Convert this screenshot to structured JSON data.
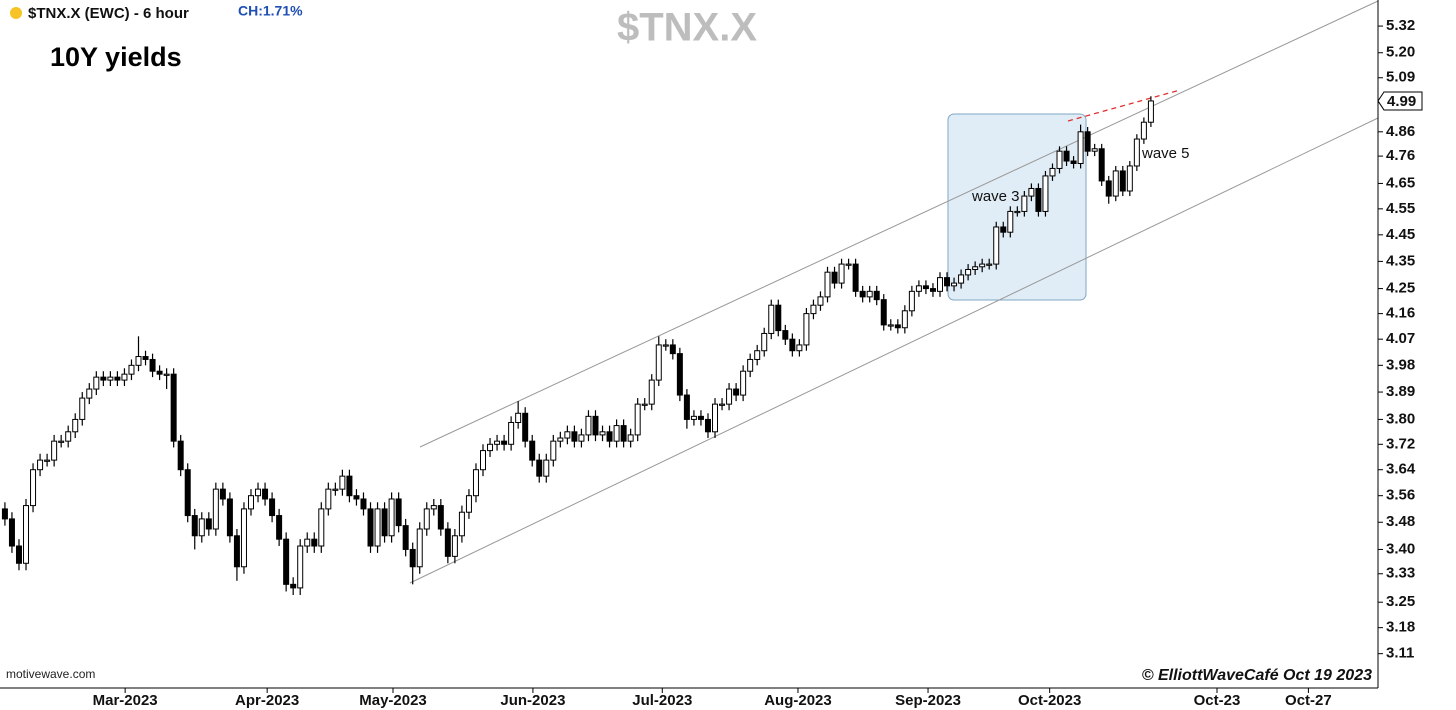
{
  "chart_data": {
    "type": "candlestick",
    "title": "$TNX.X (EWC) - 6 hour",
    "change_label": "CH:1.71%",
    "watermark": "$TNX.X",
    "subtitle": "10Y yields",
    "source": "motivewave.com",
    "copyright": "© ElliottWaveCafé Oct 19 2023",
    "annotations": [
      {
        "text": "wave 3"
      },
      {
        "text": "wave 5"
      }
    ],
    "last_price": 4.99,
    "up_color": "#ffffff",
    "down_color": "#000000",
    "log_scale": true,
    "ylim": [
      3.02,
      5.44
    ],
    "yticks": [
      3.11,
      3.18,
      3.25,
      3.33,
      {
        "value": 3.4,
        "label": "3.40"
      },
      3.48,
      3.56,
      3.64,
      3.72,
      {
        "value": 3.8,
        "label": "3.80"
      },
      3.89,
      3.98,
      4.07,
      4.16,
      4.25,
      4.35,
      4.45,
      4.55,
      4.65,
      4.76,
      4.86,
      5.09,
      {
        "value": 5.2,
        "label": "5.20"
      },
      5.32
    ],
    "xlim": [
      -0.7,
      195.3
    ],
    "xticks": [
      {
        "value": 17.1,
        "label": "Mar-2023"
      },
      {
        "value": 37.3,
        "label": "Apr-2023"
      },
      {
        "value": 55.2,
        "label": "May-2023"
      },
      {
        "value": 75.1,
        "label": "Jun-2023"
      },
      {
        "value": 93.5,
        "label": "Jul-2023"
      },
      {
        "value": 112.8,
        "label": "Aug-2023"
      },
      {
        "value": 131.3,
        "label": "Sep-2023"
      },
      {
        "value": 148.6,
        "label": "Oct-2023"
      },
      {
        "value": 172.4,
        "label": "Oct-23"
      },
      {
        "value": 185.4,
        "label": "Oct-27"
      }
    ],
    "open": [
      3.52,
      3.49,
      3.41,
      3.36,
      3.53,
      3.64,
      3.67,
      3.67,
      3.73,
      3.73,
      3.76,
      3.8,
      3.87,
      3.9,
      3.94,
      3.93,
      3.94,
      3.93,
      3.95,
      3.98,
      4.01,
      4.0,
      3.96,
      3.95,
      3.95,
      3.73,
      3.64,
      3.5,
      3.44,
      3.49,
      3.46,
      3.58,
      3.55,
      3.44,
      3.35,
      3.52,
      3.56,
      3.58,
      3.55,
      3.5,
      3.43,
      3.3,
      3.29,
      3.41,
      3.43,
      3.41,
      3.52,
      3.58,
      3.58,
      3.62,
      3.56,
      3.55,
      3.52,
      3.41,
      3.52,
      3.44,
      3.55,
      3.47,
      3.4,
      3.35,
      3.46,
      3.52,
      3.53,
      3.46,
      3.38,
      3.44,
      3.51,
      3.56,
      3.64,
      3.7,
      3.72,
      3.73,
      3.72,
      3.79,
      3.82,
      3.73,
      3.67,
      3.62,
      3.67,
      3.73,
      3.74,
      3.76,
      3.73,
      3.75,
      3.81,
      3.75,
      3.76,
      3.73,
      3.78,
      3.73,
      3.75,
      3.85,
      3.85,
      3.93,
      4.05,
      4.05,
      4.02,
      3.88,
      3.8,
      3.81,
      3.8,
      3.76,
      3.85,
      3.85,
      3.9,
      3.88,
      3.96,
      4.0,
      4.03,
      4.09,
      4.19,
      4.1,
      4.07,
      4.03,
      4.05,
      4.16,
      4.19,
      4.22,
      4.31,
      4.27,
      4.34,
      4.34,
      4.24,
      4.22,
      4.24,
      4.21,
      4.12,
      4.12,
      4.11,
      4.17,
      4.24,
      4.26,
      4.25,
      4.24,
      4.29,
      4.26,
      4.27,
      4.3,
      4.32,
      4.33,
      4.34,
      4.34,
      4.48,
      4.46,
      4.54,
      4.54,
      4.6,
      4.63,
      4.54,
      4.68,
      4.71,
      4.78,
      4.74,
      4.73,
      4.86,
      4.78,
      4.79,
      4.66,
      4.6,
      4.7,
      4.62,
      4.72,
      4.83,
      4.9
    ],
    "high": [
      3.54,
      3.51,
      3.43,
      3.55,
      3.66,
      3.69,
      3.69,
      3.75,
      3.75,
      3.78,
      3.82,
      3.89,
      3.92,
      3.96,
      3.96,
      3.96,
      3.96,
      3.97,
      4.0,
      4.08,
      4.03,
      4.02,
      3.98,
      3.97,
      3.97,
      3.75,
      3.66,
      3.52,
      3.51,
      3.51,
      3.6,
      3.6,
      3.57,
      3.46,
      3.54,
      3.58,
      3.6,
      3.6,
      3.57,
      3.52,
      3.45,
      3.32,
      3.43,
      3.45,
      3.45,
      3.54,
      3.6,
      3.6,
      3.64,
      3.64,
      3.58,
      3.57,
      3.54,
      3.54,
      3.54,
      3.57,
      3.57,
      3.49,
      3.42,
      3.48,
      3.54,
      3.55,
      3.55,
      3.48,
      3.46,
      3.53,
      3.58,
      3.66,
      3.72,
      3.74,
      3.75,
      3.75,
      3.81,
      3.86,
      3.84,
      3.75,
      3.69,
      3.69,
      3.75,
      3.76,
      3.78,
      3.78,
      3.77,
      3.83,
      3.83,
      3.78,
      3.78,
      3.8,
      3.8,
      3.77,
      3.87,
      3.87,
      3.95,
      4.08,
      4.07,
      4.07,
      4.04,
      3.9,
      3.83,
      3.83,
      3.82,
      3.87,
      3.87,
      3.92,
      3.92,
      3.98,
      4.02,
      4.05,
      4.11,
      4.21,
      4.21,
      4.12,
      4.09,
      4.07,
      4.18,
      4.21,
      4.24,
      4.33,
      4.33,
      4.36,
      4.36,
      4.36,
      4.26,
      4.26,
      4.26,
      4.23,
      4.14,
      4.14,
      4.19,
      4.26,
      4.28,
      4.28,
      4.27,
      4.31,
      4.31,
      4.29,
      4.32,
      4.34,
      4.35,
      4.36,
      4.36,
      4.5,
      4.5,
      4.56,
      4.56,
      4.62,
      4.65,
      4.65,
      4.7,
      4.73,
      4.8,
      4.8,
      4.76,
      4.89,
      4.88,
      4.81,
      4.81,
      4.68,
      4.72,
      4.72,
      4.74,
      4.85,
      4.92,
      5.01
    ],
    "low": [
      3.47,
      3.39,
      3.34,
      3.34,
      3.51,
      3.62,
      3.65,
      3.65,
      3.71,
      3.71,
      3.74,
      3.78,
      3.85,
      3.88,
      3.91,
      3.91,
      3.91,
      3.91,
      3.93,
      3.96,
      3.98,
      3.94,
      3.93,
      3.9,
      3.71,
      3.62,
      3.48,
      3.4,
      3.42,
      3.44,
      3.44,
      3.53,
      3.42,
      3.31,
      3.33,
      3.5,
      3.54,
      3.53,
      3.48,
      3.41,
      3.28,
      3.27,
      3.27,
      3.39,
      3.39,
      3.39,
      3.5,
      3.56,
      3.56,
      3.54,
      3.53,
      3.5,
      3.39,
      3.39,
      3.42,
      3.42,
      3.45,
      3.38,
      3.3,
      3.33,
      3.44,
      3.5,
      3.44,
      3.36,
      3.36,
      3.42,
      3.49,
      3.54,
      3.62,
      3.68,
      3.7,
      3.7,
      3.7,
      3.77,
      3.71,
      3.65,
      3.6,
      3.6,
      3.65,
      3.71,
      3.72,
      3.71,
      3.71,
      3.73,
      3.73,
      3.73,
      3.71,
      3.71,
      3.71,
      3.71,
      3.73,
      3.83,
      3.83,
      3.91,
      4.03,
      4.0,
      3.86,
      3.77,
      3.78,
      3.78,
      3.74,
      3.74,
      3.83,
      3.83,
      3.86,
      3.86,
      3.94,
      3.98,
      4.01,
      4.07,
      4.08,
      4.05,
      4.01,
      4.01,
      4.03,
      4.14,
      4.17,
      4.2,
      4.25,
      4.25,
      4.32,
      4.22,
      4.2,
      4.2,
      4.19,
      4.1,
      4.1,
      4.09,
      4.09,
      4.15,
      4.22,
      4.23,
      4.22,
      4.22,
      4.24,
      4.24,
      4.25,
      4.28,
      4.3,
      4.31,
      4.32,
      4.32,
      4.44,
      4.44,
      4.52,
      4.52,
      4.58,
      4.52,
      4.52,
      4.66,
      4.69,
      4.72,
      4.71,
      4.71,
      4.76,
      4.76,
      4.64,
      4.57,
      4.58,
      4.6,
      4.6,
      4.7,
      4.81,
      4.88
    ],
    "close": [
      3.49,
      3.41,
      3.36,
      3.53,
      3.64,
      3.67,
      3.67,
      3.73,
      3.73,
      3.76,
      3.8,
      3.87,
      3.9,
      3.94,
      3.93,
      3.94,
      3.93,
      3.95,
      3.98,
      4.01,
      4.0,
      3.96,
      3.95,
      3.95,
      3.73,
      3.64,
      3.5,
      3.44,
      3.49,
      3.46,
      3.58,
      3.55,
      3.44,
      3.35,
      3.52,
      3.56,
      3.58,
      3.55,
      3.5,
      3.43,
      3.3,
      3.29,
      3.41,
      3.43,
      3.41,
      3.52,
      3.58,
      3.58,
      3.62,
      3.56,
      3.55,
      3.52,
      3.41,
      3.52,
      3.44,
      3.55,
      3.47,
      3.4,
      3.35,
      3.46,
      3.52,
      3.53,
      3.46,
      3.38,
      3.44,
      3.51,
      3.56,
      3.64,
      3.7,
      3.72,
      3.73,
      3.72,
      3.79,
      3.82,
      3.73,
      3.67,
      3.62,
      3.67,
      3.73,
      3.74,
      3.76,
      3.73,
      3.75,
      3.81,
      3.75,
      3.76,
      3.73,
      3.78,
      3.73,
      3.75,
      3.85,
      3.85,
      3.93,
      4.05,
      4.05,
      4.02,
      3.88,
      3.8,
      3.81,
      3.8,
      3.76,
      3.85,
      3.85,
      3.9,
      3.88,
      3.96,
      4.0,
      4.03,
      4.09,
      4.19,
      4.1,
      4.07,
      4.03,
      4.05,
      4.16,
      4.19,
      4.22,
      4.31,
      4.27,
      4.34,
      4.34,
      4.24,
      4.22,
      4.24,
      4.21,
      4.12,
      4.12,
      4.11,
      4.17,
      4.24,
      4.26,
      4.25,
      4.24,
      4.29,
      4.26,
      4.27,
      4.3,
      4.32,
      4.33,
      4.34,
      4.34,
      4.48,
      4.46,
      4.54,
      4.54,
      4.6,
      4.63,
      4.54,
      4.68,
      4.71,
      4.78,
      4.74,
      4.73,
      4.86,
      4.78,
      4.79,
      4.66,
      4.6,
      4.7,
      4.62,
      4.72,
      4.83,
      4.9,
      4.99
    ]
  }
}
